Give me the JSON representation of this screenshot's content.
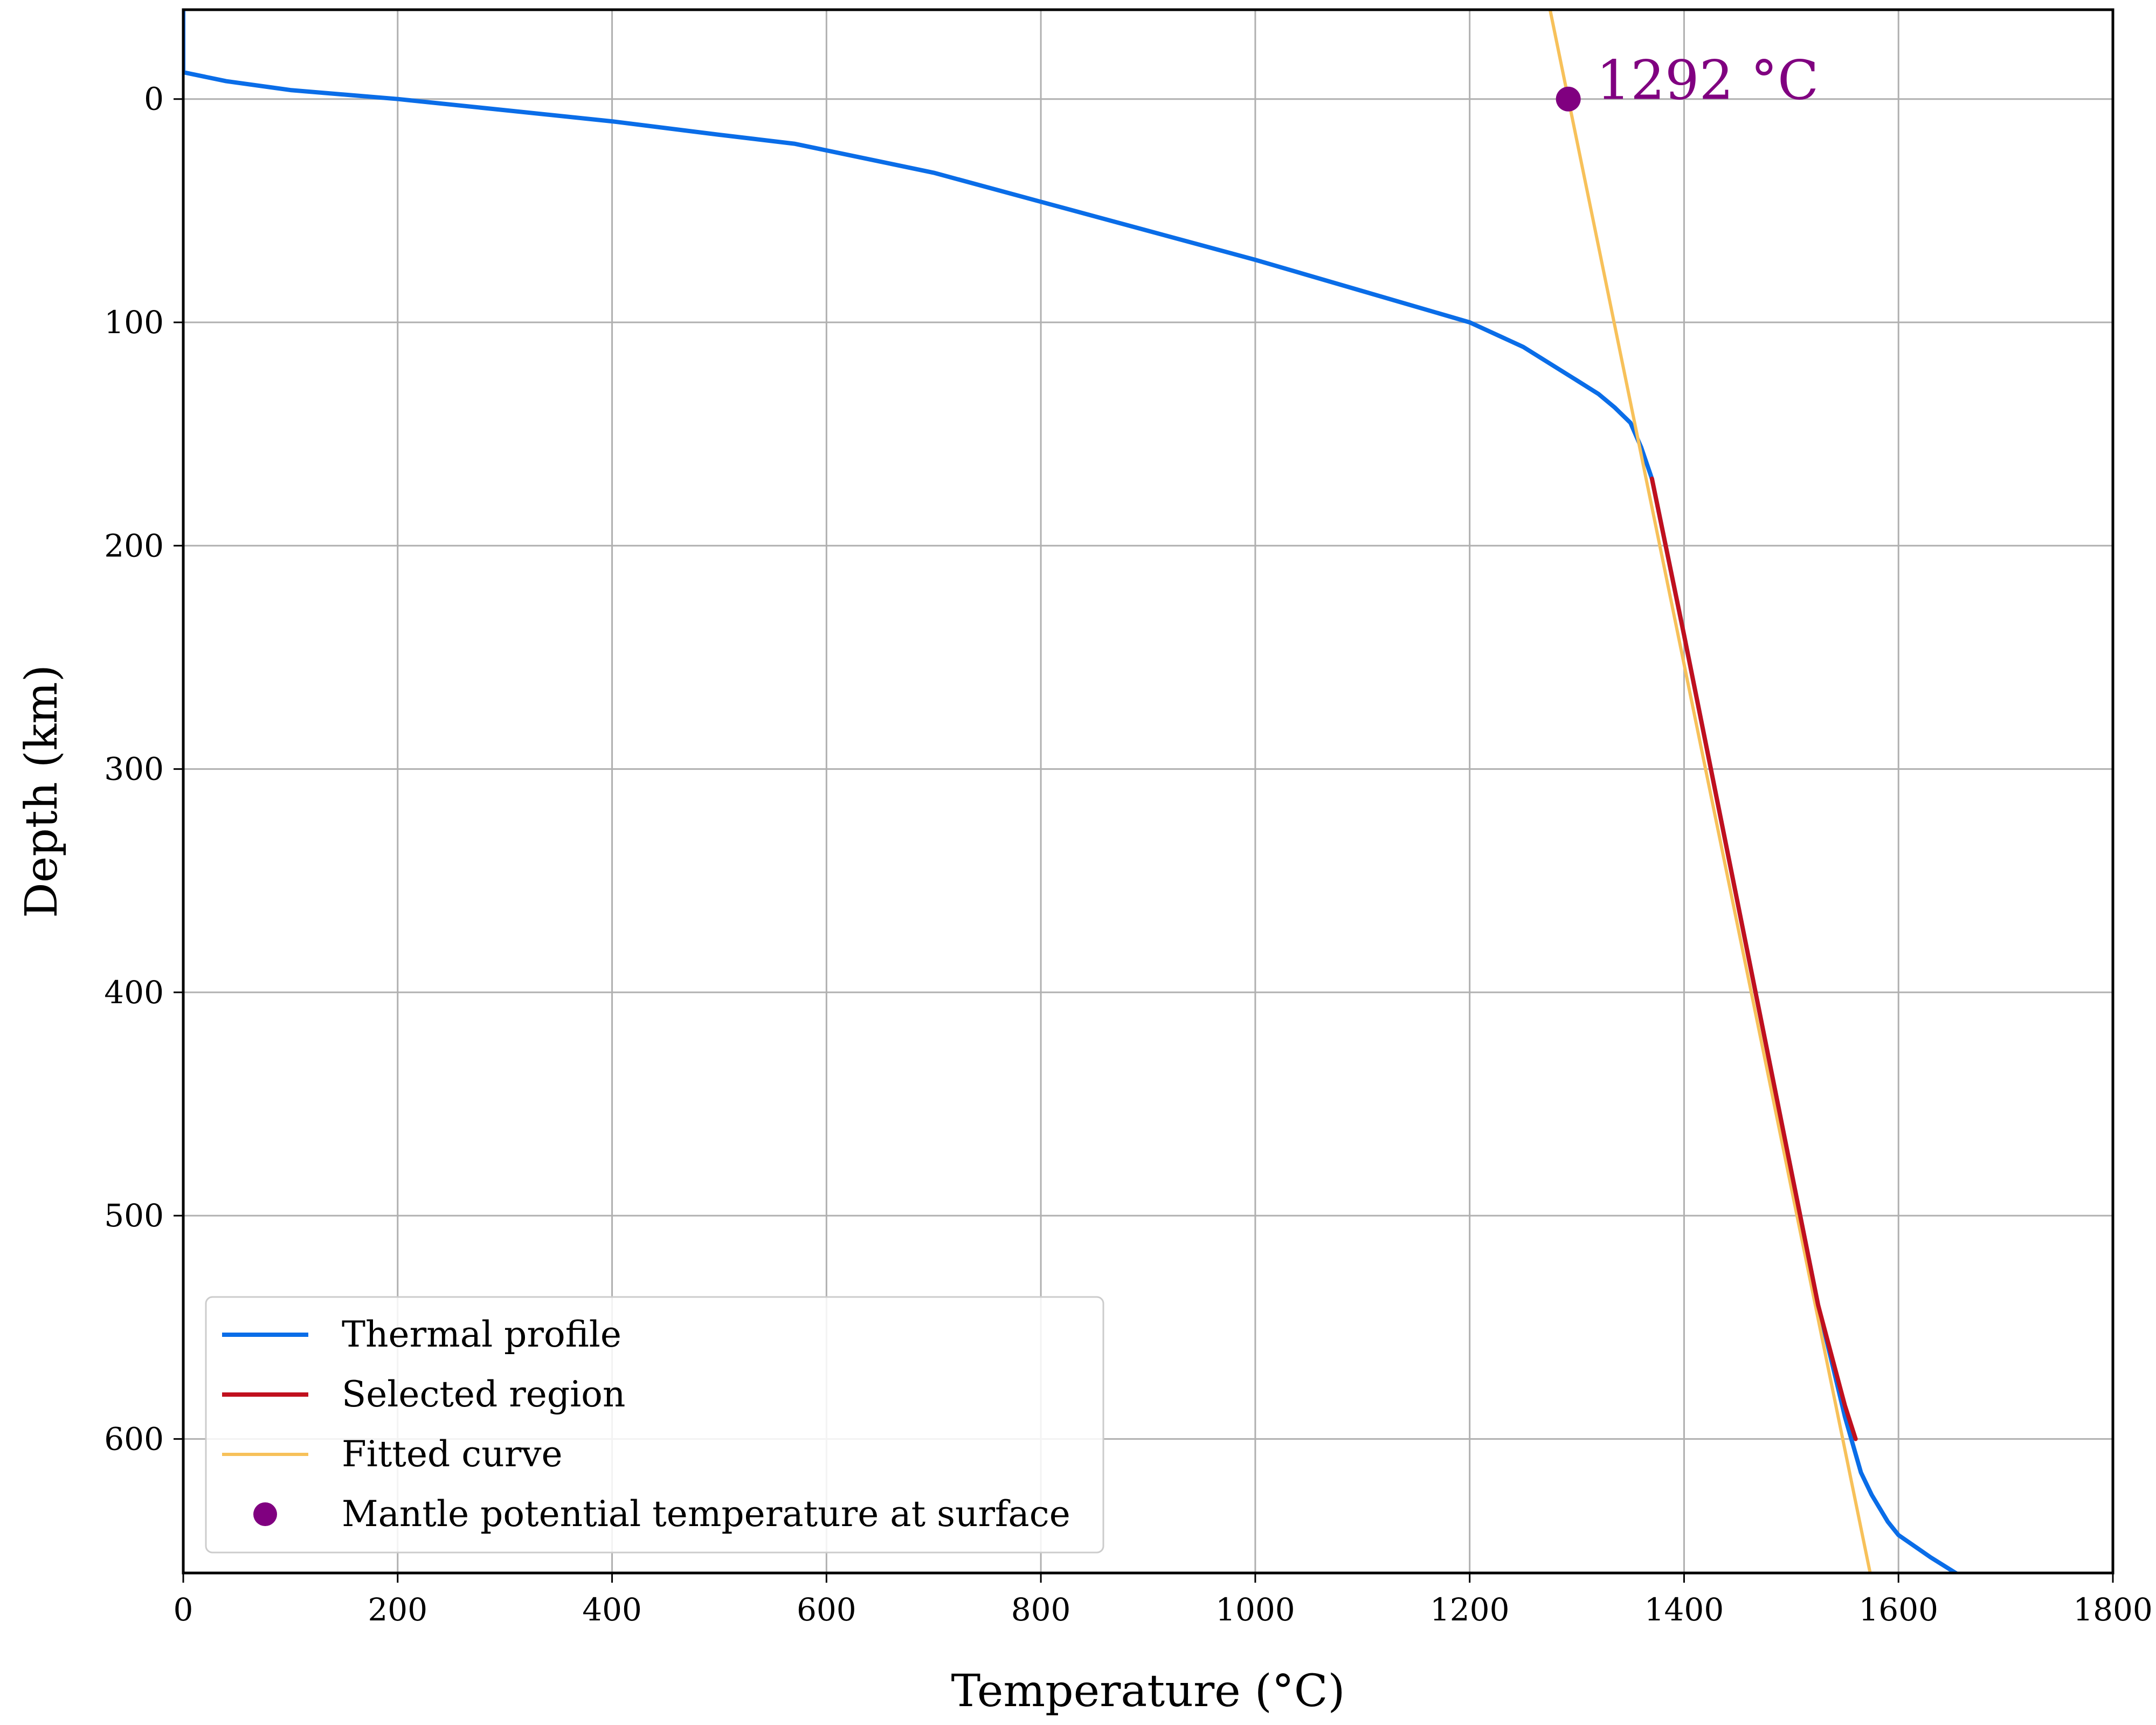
{
  "chart_data": {
    "type": "line",
    "title": "",
    "xlabel": "Temperature (°C)",
    "ylabel": "Depth (km)",
    "xlim": [
      0,
      1800
    ],
    "ylim": [
      660,
      -40
    ],
    "y_inverted": true,
    "grid": true,
    "legend_position": "lower-left",
    "xticks": [
      0,
      200,
      400,
      600,
      800,
      1000,
      1200,
      1400,
      1600,
      1800
    ],
    "yticks": [
      0,
      100,
      200,
      300,
      400,
      500,
      600
    ],
    "series": [
      {
        "name": "Thermal profile",
        "color": "#0a6de8",
        "x": [
          0,
          0,
          40,
          100,
          200,
          300,
          400,
          500,
          570,
          650,
          700,
          800,
          900,
          1000,
          1100,
          1200,
          1250,
          1280,
          1300,
          1320,
          1335,
          1350,
          1360,
          1370,
          1385,
          1400,
          1425,
          1450,
          1475,
          1500,
          1525,
          1550,
          1565,
          1575,
          1590,
          1600,
          1630,
          1660,
          1700
        ],
        "y": [
          -40,
          -12,
          -8,
          -4,
          0,
          5,
          10,
          16,
          20,
          28,
          33,
          46,
          59,
          72,
          86,
          100,
          111,
          120,
          126,
          132,
          138,
          145,
          156,
          170,
          205,
          240,
          300,
          360,
          420,
          480,
          540,
          590,
          615,
          625,
          637,
          643,
          653,
          662,
          675
        ]
      },
      {
        "name": "Selected region",
        "color": "#c0101e",
        "x": [
          1370,
          1385,
          1400,
          1425,
          1450,
          1475,
          1500,
          1525,
          1550,
          1560
        ],
        "y": [
          170,
          205,
          240,
          300,
          360,
          420,
          480,
          540,
          585,
          600
        ]
      },
      {
        "name": "Fitted curve",
        "color": "#f7c15a",
        "x": [
          1275,
          1580
        ],
        "y": [
          -40,
          675
        ]
      }
    ],
    "points": [
      {
        "name": "Mantle potential temperature at surface",
        "color": "#800080",
        "x": 1292,
        "y": 0,
        "label": "1292 °C"
      }
    ]
  }
}
